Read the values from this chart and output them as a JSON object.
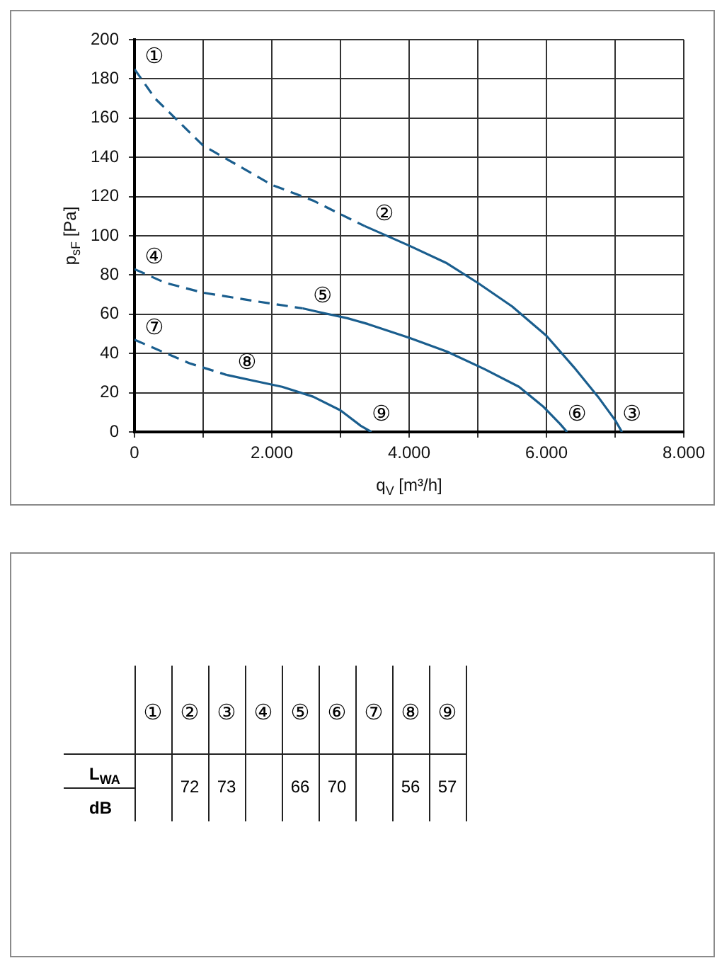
{
  "chart_data": [
    {
      "type": "line",
      "xlabel": "q$_{V}$ [m³/h]",
      "ylabel": "p$_{sF}$ [Pa]",
      "xlim": [
        0,
        8000
      ],
      "xticks": [
        0,
        {
          "value": 1000,
          "label": null
        },
        {
          "value": 2000,
          "label": "2.000"
        },
        {
          "value": 3000,
          "label": null
        },
        {
          "value": 4000,
          "label": "4.000"
        },
        {
          "value": 5000,
          "label": null
        },
        {
          "value": 6000,
          "label": "6.000"
        },
        {
          "value": 7000,
          "label": null
        },
        {
          "value": 8000,
          "label": "8.000"
        }
      ],
      "ylim": [
        0,
        200
      ],
      "yticks": [
        0,
        20,
        40,
        60,
        80,
        100,
        120,
        140,
        160,
        180,
        200
      ],
      "grid": true,
      "series": [
        {
          "color": "#1a5e8e",
          "line_style": "dashed",
          "x": [
            0,
            300,
            650,
            1000,
            1500,
            2000,
            2600,
            3000,
            3350
          ],
          "values": [
            185,
            170,
            158,
            146,
            136,
            126,
            118,
            111,
            105
          ]
        },
        {
          "color": "#1a5e8e",
          "line_style": "solid",
          "x": [
            3350,
            4000,
            4550,
            5000,
            5500,
            6000,
            6400,
            6750,
            7000,
            7100
          ],
          "values": [
            105,
            95,
            86,
            76,
            64,
            49,
            33,
            18,
            6,
            0
          ]
        },
        {
          "color": "#1a5e8e",
          "line_style": "dashed",
          "x": [
            0,
            450,
            1000,
            1700,
            2450
          ],
          "values": [
            83,
            76,
            71,
            67,
            63
          ]
        },
        {
          "color": "#1a5e8e",
          "line_style": "solid",
          "x": [
            2450,
            2700,
            3100,
            3400,
            4000,
            4550,
            5100,
            5600,
            5950,
            6200,
            6300
          ],
          "values": [
            63,
            61,
            58,
            55,
            48,
            41,
            32,
            23,
            13,
            4,
            0
          ]
        },
        {
          "color": "#1a5e8e",
          "line_style": "dashed",
          "x": [
            0,
            400,
            800,
            1350
          ],
          "values": [
            47,
            41,
            35,
            29
          ]
        },
        {
          "color": "#1a5e8e",
          "line_style": "solid",
          "x": [
            1350,
            1750,
            2150,
            2600,
            3000,
            3300,
            3450
          ],
          "values": [
            29,
            26,
            23,
            18,
            11,
            3,
            0
          ]
        }
      ],
      "annotations": [
        {
          "text": "①",
          "x": 0,
          "y": 185
        },
        {
          "text": "②",
          "x": 3350,
          "y": 105
        },
        {
          "text": "③",
          "x": 7100,
          "y": 0
        },
        {
          "text": "④",
          "x": 0,
          "y": 83
        },
        {
          "text": "⑤",
          "x": 2450,
          "y": 63
        },
        {
          "text": "⑥",
          "x": 6300,
          "y": 0
        },
        {
          "text": "⑦",
          "x": 0,
          "y": 47
        },
        {
          "text": "⑧",
          "x": 1350,
          "y": 29
        },
        {
          "text": "⑨",
          "x": 3450,
          "y": 0
        }
      ]
    },
    {
      "type": "heatmap",
      "categories": [
        "①",
        "②",
        "③",
        "④",
        "⑤",
        "⑥",
        "⑦",
        "⑧",
        "⑨"
      ],
      "y_categories": [
        "L$_{WA}$"
      ],
      "ylabel": "dB",
      "data_labels": true,
      "cells": [
        [
          null,
          72,
          73,
          null,
          66,
          70,
          null,
          56,
          57
        ]
      ]
    }
  ]
}
